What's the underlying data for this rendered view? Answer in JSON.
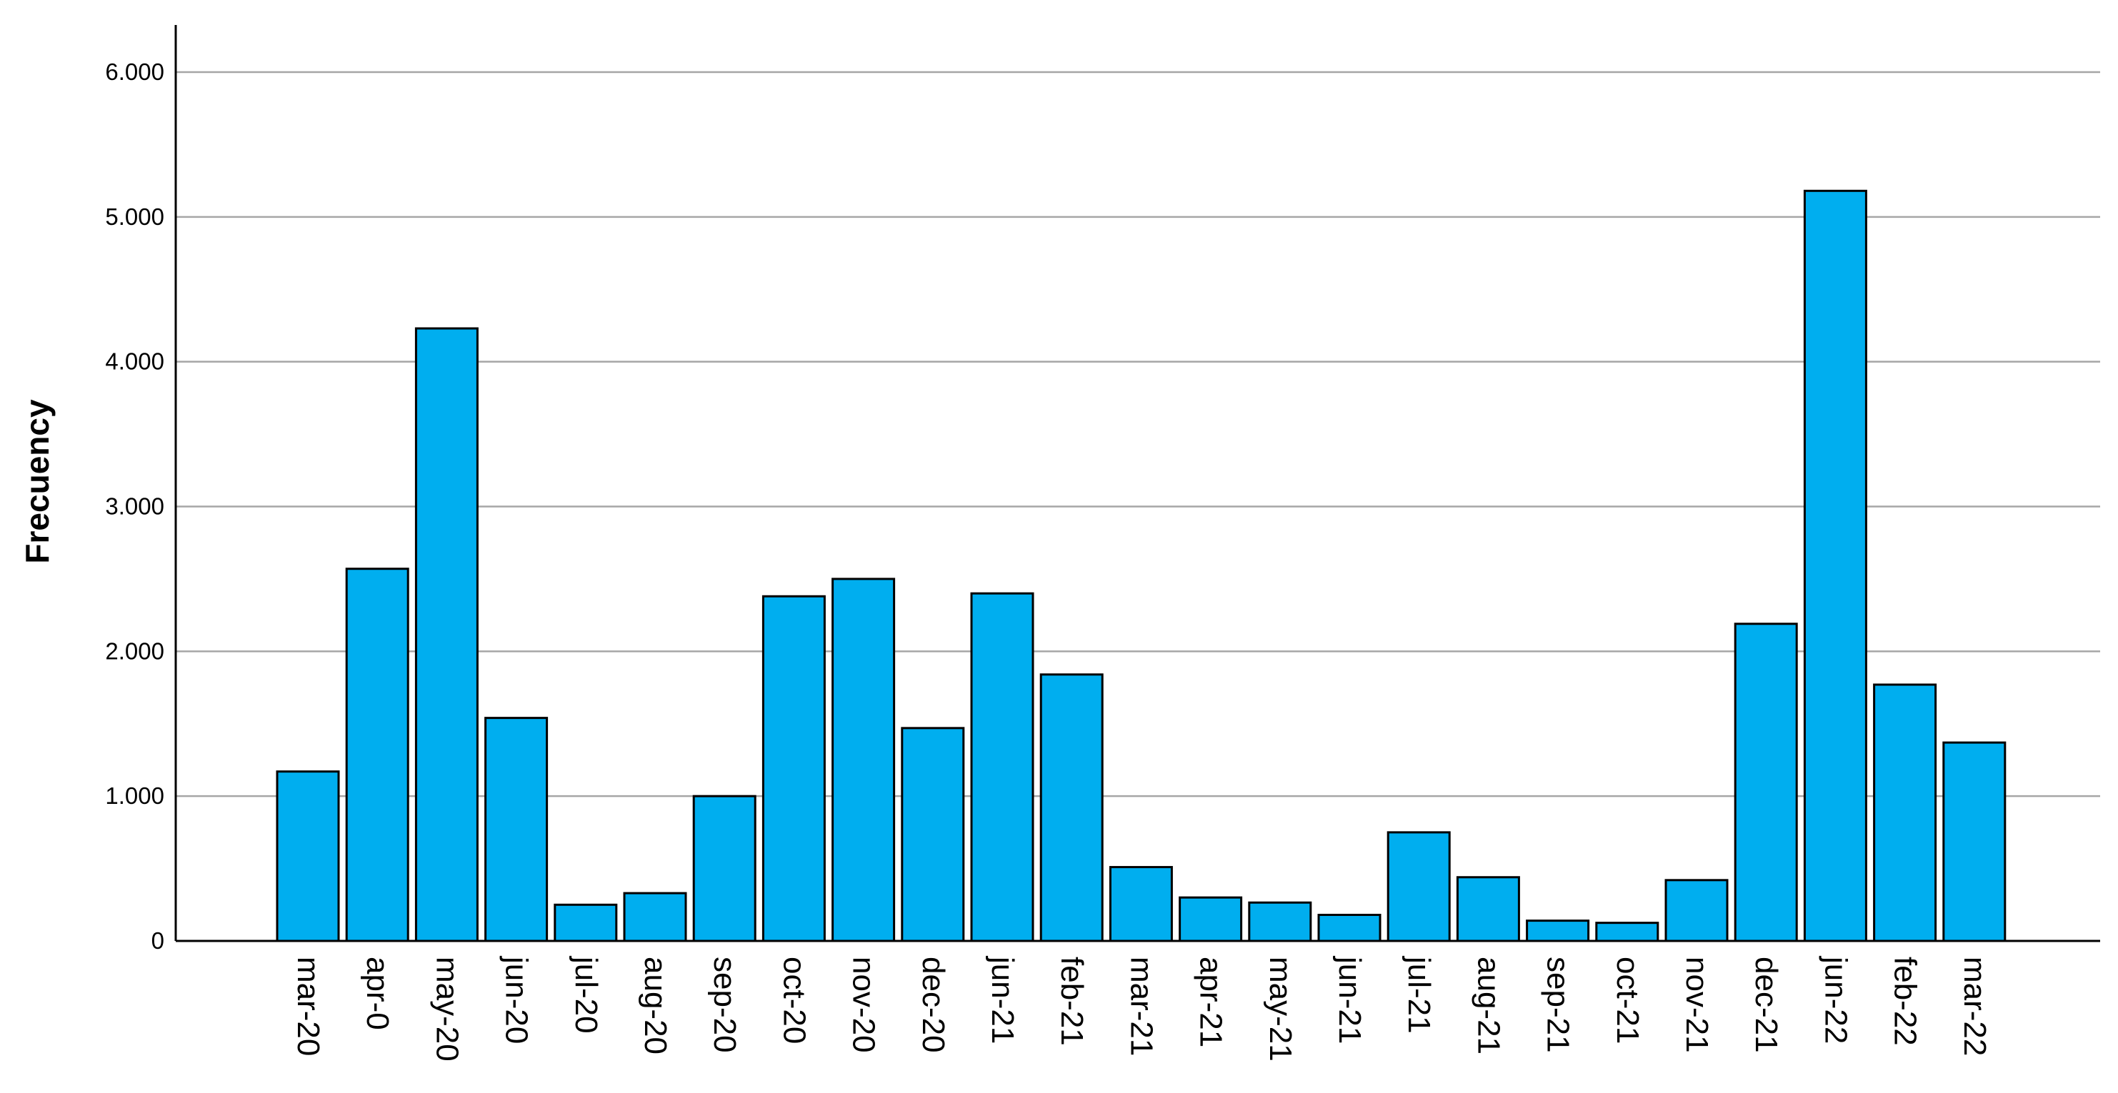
{
  "chart_data": {
    "type": "bar",
    "title": "",
    "xlabel": "",
    "ylabel": "Frecuency",
    "categories": [
      "mar-20",
      "apr-0",
      "may-20",
      "jun-20",
      "jul-20",
      "aug-20",
      "sep-20",
      "oct-20",
      "nov-20",
      "dec-20",
      "jun-21",
      "feb-21",
      "mar-21",
      "apr-21",
      "may-21",
      "jun-21",
      "jul-21",
      "aug-21",
      "sep-21",
      "oct-21",
      "nov-21",
      "dec-21",
      "jun-22",
      "feb-22",
      "mar-22"
    ],
    "values": [
      1170,
      2570,
      4230,
      1540,
      250,
      330,
      1000,
      2380,
      2500,
      1470,
      2400,
      1840,
      510,
      300,
      265,
      180,
      750,
      440,
      140,
      125,
      420,
      2190,
      5180,
      1770,
      1370
    ],
    "ylim": [
      0,
      6000
    ],
    "yticks": [
      0,
      1000,
      2000,
      3000,
      4000,
      5000,
      6000
    ],
    "ytick_labels": [
      "0",
      "1.000",
      "2.000",
      "3.000",
      "4.000",
      "5.000",
      "6.000"
    ],
    "grid": true,
    "legend": "none",
    "colors": {
      "bar_fill": "#00AEEF",
      "bar_stroke": "#000000",
      "grid": "#A6A6A6",
      "axis": "#000000"
    }
  }
}
